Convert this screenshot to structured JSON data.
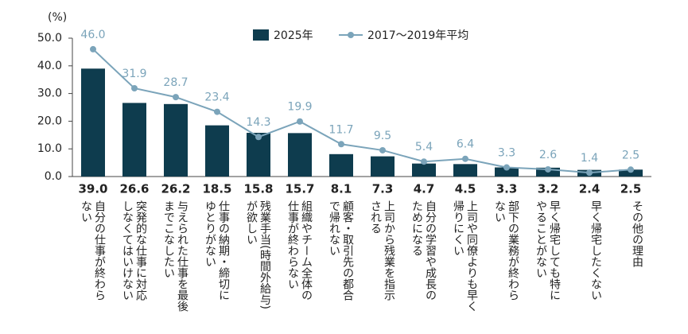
{
  "chart_data": {
    "type": "bar_line",
    "y_unit_label": "(%)",
    "categories": [
      "自分の仕事が終わら\nない",
      "突発的な仕事に対応\nしなくてはいけない",
      "与えられた仕事を最後\nまでこなしたい",
      "仕事の納期・締切に\nゆとりがない",
      "残業手当(時間外給与)\nが欲しい",
      "組織やチーム全体の\n仕事が終わらない",
      "顧客・取引先の都合\nで帰れない",
      "上司から残業を指示\nされる",
      "自分の学習や成長の\nためになる",
      "上司や同僚よりも早く\n帰りにくい",
      "部下の業務が終わら\nない",
      "早く帰宅しても特に\nやることがない",
      "早く帰宅したくない",
      "その他の理由"
    ],
    "series": [
      {
        "name": "2025年",
        "type": "bar",
        "color": "#0e3c4e",
        "values": [
          39.0,
          26.6,
          26.2,
          18.5,
          15.8,
          15.7,
          8.1,
          7.3,
          4.7,
          4.5,
          3.3,
          3.2,
          2.4,
          2.5
        ],
        "value_labels": [
          "39.0",
          "26.6",
          "26.2",
          "18.5",
          "15.8",
          "15.7",
          "8.1",
          "7.3",
          "4.7",
          "4.5",
          "3.3",
          "3.2",
          "2.4",
          "2.5"
        ]
      },
      {
        "name": "2017～2019年平均",
        "type": "line",
        "color": "#7ba4ba",
        "values": [
          46.0,
          31.9,
          28.7,
          23.4,
          14.3,
          19.9,
          11.7,
          9.5,
          5.4,
          6.4,
          3.3,
          2.6,
          1.4,
          2.5
        ],
        "value_labels": [
          "46.0",
          "31.9",
          "28.7",
          "23.4",
          "14.3",
          "19.9",
          "11.7",
          "9.5",
          "5.4",
          "6.4",
          "3.3",
          "2.6",
          "1.4",
          "2.5"
        ]
      }
    ],
    "ylim": [
      0,
      50
    ],
    "yticks": [
      {
        "value": 0,
        "label": "0.0"
      },
      {
        "value": 10,
        "label": "10.0"
      },
      {
        "value": 20,
        "label": "20.0"
      },
      {
        "value": 30,
        "label": "30.0"
      },
      {
        "value": 40,
        "label": "40.0"
      },
      {
        "value": 50,
        "label": "50.0"
      }
    ],
    "legend": "top"
  }
}
